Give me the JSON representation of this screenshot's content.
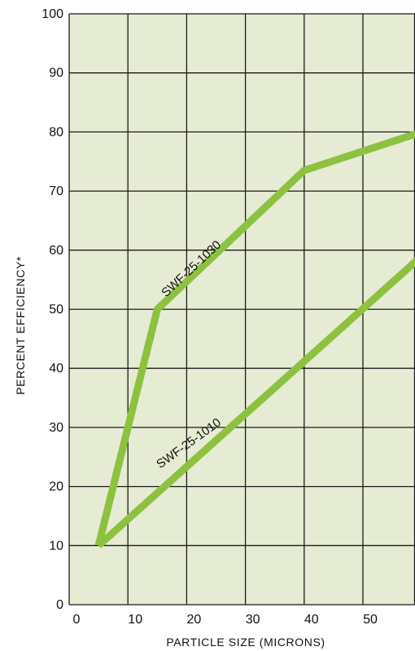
{
  "colors": {
    "plot_background": "#e6ecd3",
    "grid": "#1a1a1a",
    "series_line": "#8dc13f"
  },
  "chart_data": {
    "type": "line",
    "xlabel": "PARTICLE SIZE (MICRONS)",
    "ylabel": "PERCENT EFFICIENCY*",
    "xlim": [
      0,
      60
    ],
    "ylim": [
      0,
      100
    ],
    "x_ticks": [
      0,
      10,
      20,
      30,
      40,
      50
    ],
    "y_ticks": [
      0,
      10,
      20,
      30,
      40,
      50,
      60,
      70,
      80,
      90,
      100
    ],
    "grid": true,
    "series": [
      {
        "name": "SWF-25-1030",
        "x": [
          5,
          15,
          40,
          60
        ],
        "y": [
          10,
          50,
          73.5,
          80
        ]
      },
      {
        "name": "SWF-25-1010",
        "x": [
          5,
          60
        ],
        "y": [
          10,
          59
        ]
      }
    ]
  }
}
